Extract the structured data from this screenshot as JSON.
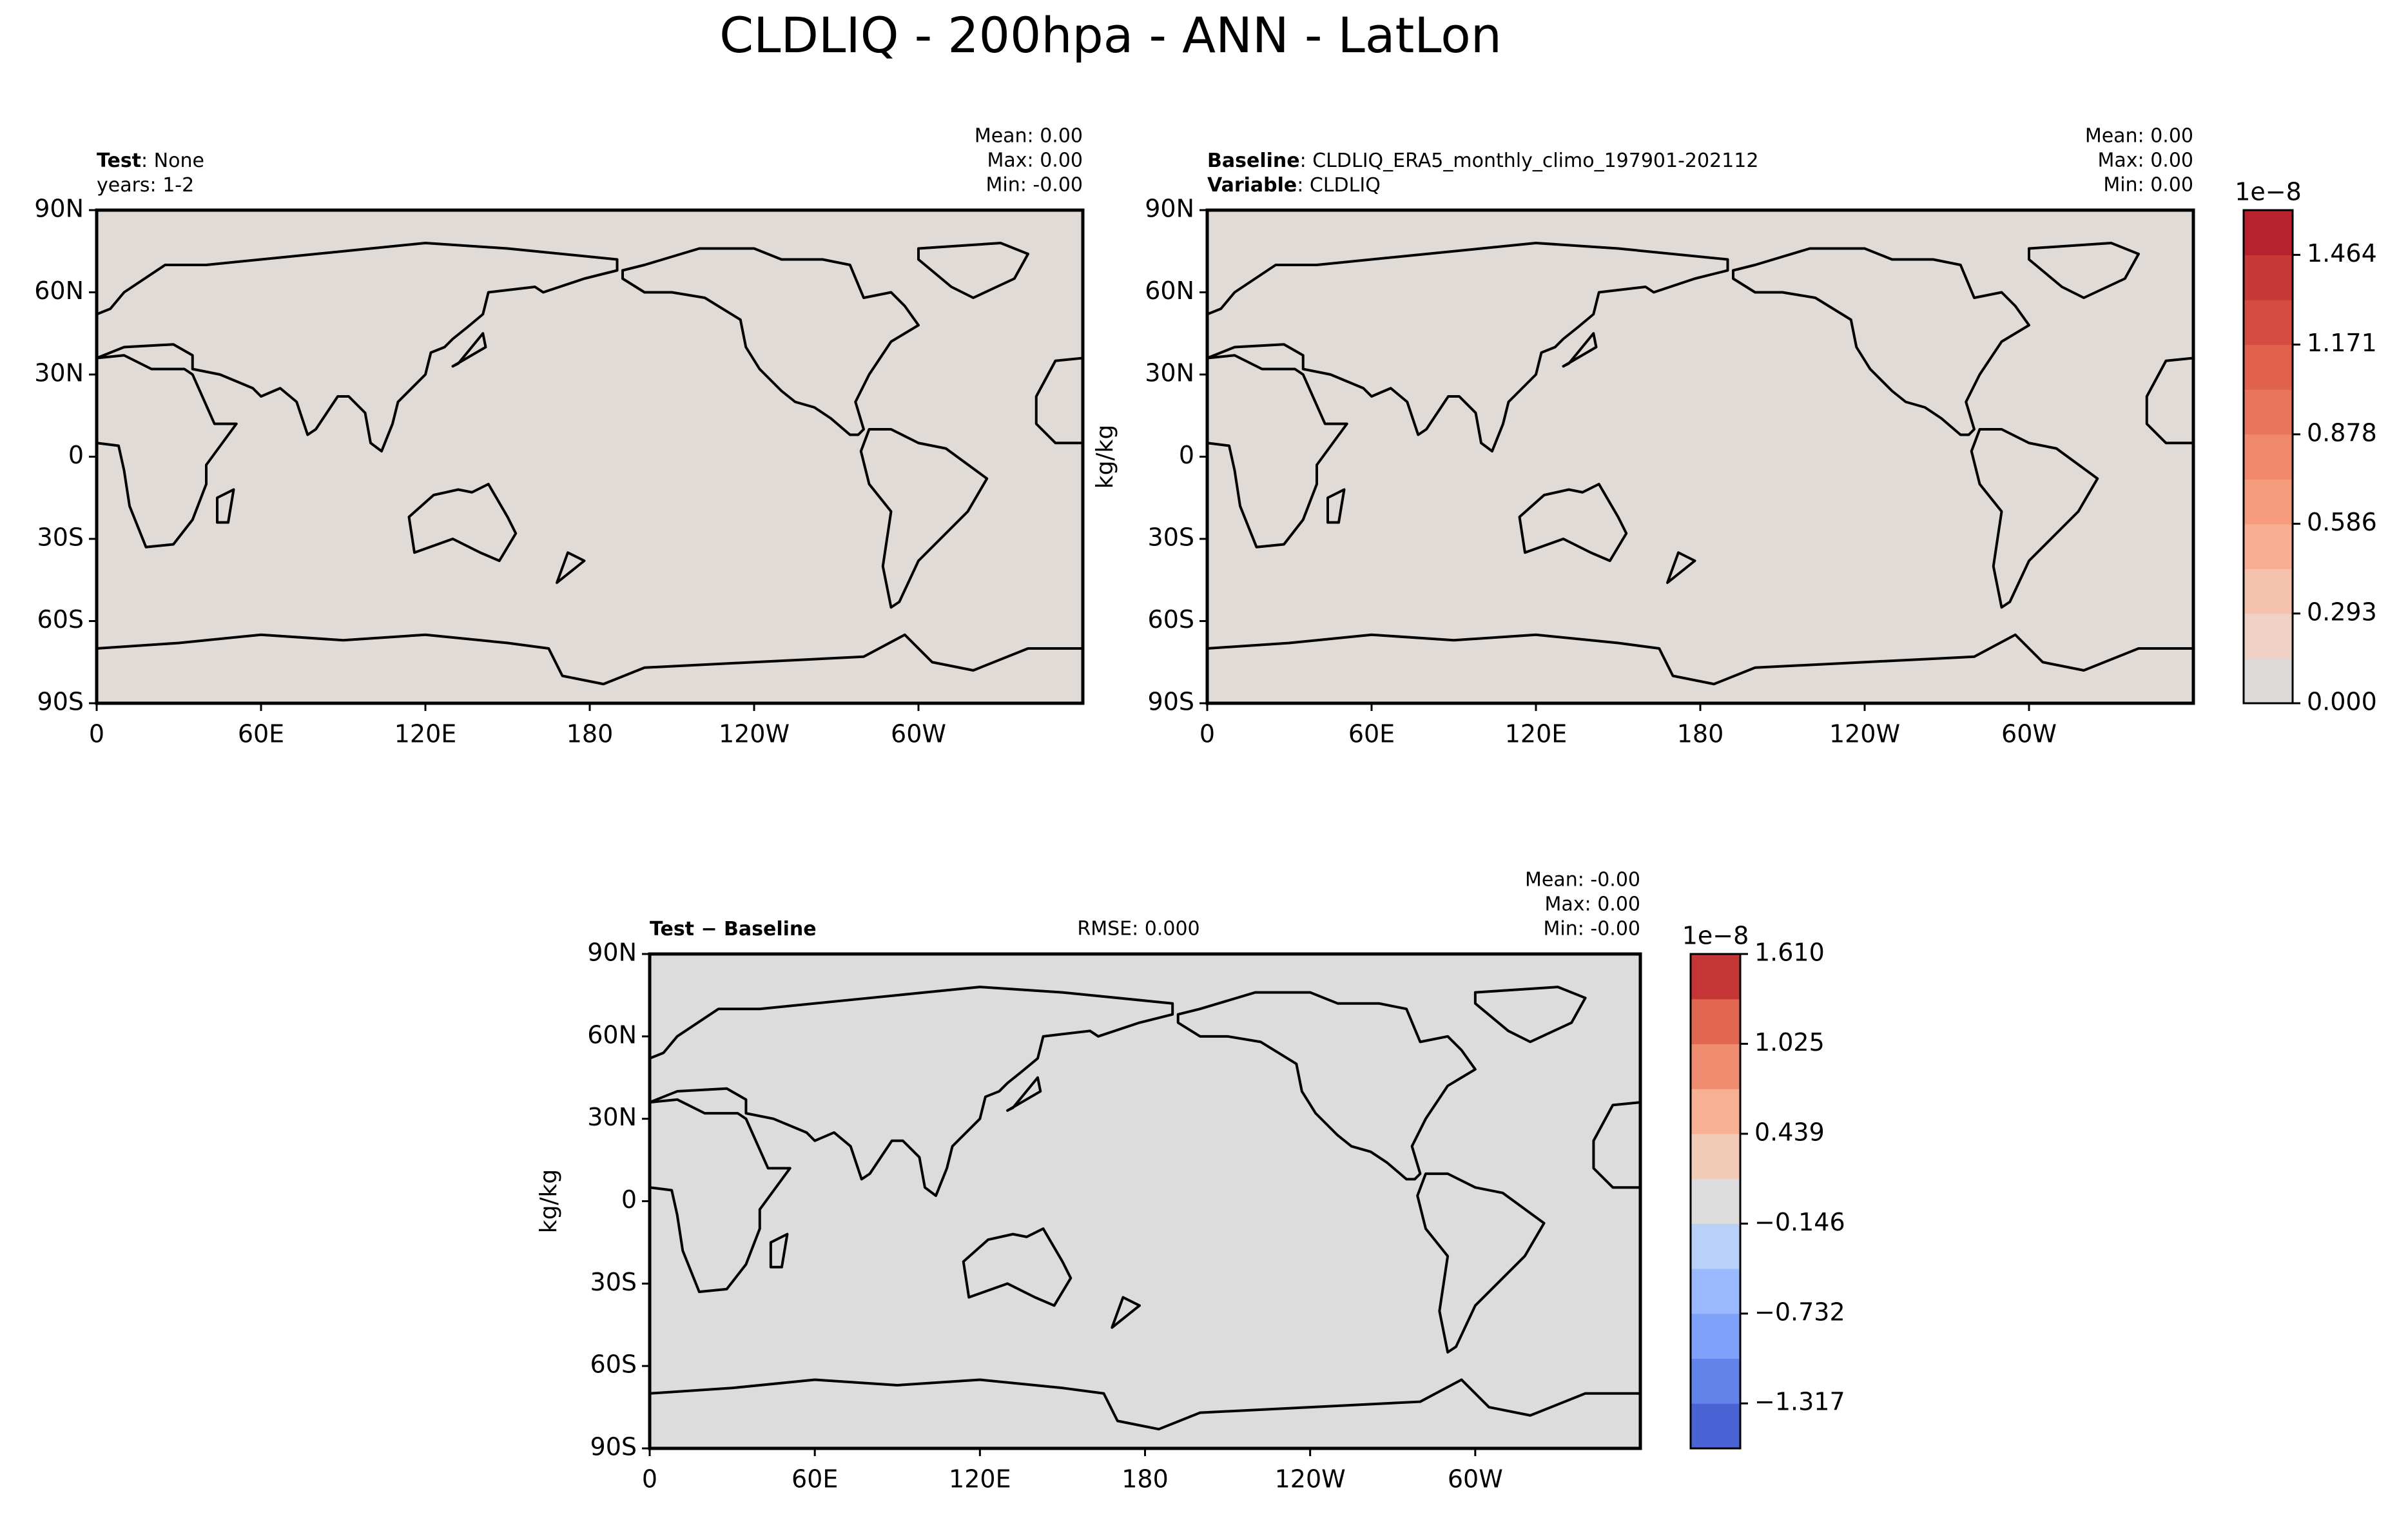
{
  "title": "CLDLIQ - 200hpa - ANN - LatLon",
  "chart_data": [
    {
      "type": "map",
      "fill_color": "#e0dbd7",
      "rows": [
        {
          "bold": "Test",
          "text": ": None"
        },
        {
          "text": "years: 1-2"
        }
      ],
      "stats": [
        "Mean:  0.00",
        "Max:  0.00",
        "Min: -0.00"
      ],
      "xlim": [
        0,
        360
      ],
      "ylim": [
        -90,
        90
      ],
      "xticks": [
        0,
        {
          "value": 60,
          "label": "60E"
        },
        {
          "value": 120,
          "label": "120E"
        },
        180,
        {
          "value": 240,
          "label": "120W"
        },
        {
          "value": 300,
          "label": "60W"
        }
      ],
      "yticks": [
        {
          "value": 90,
          "label": "90N"
        },
        {
          "value": 60,
          "label": "60N"
        },
        {
          "value": 30,
          "label": "30N"
        },
        0,
        {
          "value": -30,
          "label": "30S"
        },
        {
          "value": -60,
          "label": "60S"
        },
        {
          "value": -90,
          "label": "90S"
        }
      ]
    },
    {
      "type": "map",
      "fill_color": "#e0dbd7",
      "rows": [
        {
          "bold": "Baseline",
          "text": ": CLDLIQ_ERA5_monthly_climo_197901-202112"
        },
        {
          "bold": "Variable",
          "text": ": CLDLIQ"
        }
      ],
      "stats": [
        "Mean:  0.00",
        "Max:  0.00",
        "Min:  0.00"
      ],
      "ylabel": "kg/kg",
      "xlim": [
        0,
        360
      ],
      "ylim": [
        -90,
        90
      ],
      "xticks": [
        0,
        {
          "value": 60,
          "label": "60E"
        },
        {
          "value": 120,
          "label": "120E"
        },
        180,
        {
          "value": 240,
          "label": "120W"
        },
        {
          "value": 300,
          "label": "60W"
        }
      ],
      "yticks": [
        {
          "value": 90,
          "label": "90N"
        },
        {
          "value": 60,
          "label": "60N"
        },
        {
          "value": 30,
          "label": "30N"
        },
        0,
        {
          "value": -30,
          "label": "30S"
        },
        {
          "value": -60,
          "label": "60S"
        },
        {
          "value": -90,
          "label": "90S"
        }
      ],
      "colorbar": {
        "offset_label": "1e−8",
        "lim": [
          0,
          1.61
        ],
        "ticks": [
          {
            "value": 0,
            "label": "0.000"
          },
          0.293,
          0.586,
          0.878,
          1.171,
          1.464
        ],
        "colors": [
          "#dcdad9",
          "#efd2c5",
          "#f5c3ad",
          "#f7ae93",
          "#f59c7f",
          "#f0886b",
          "#e8755c",
          "#df614e",
          "#d44c42",
          "#c83836",
          "#b8222f"
        ]
      }
    },
    {
      "type": "map",
      "fill_color": "#dcdcdc",
      "rows": [
        {
          "bold": "Test − Baseline"
        }
      ],
      "rmse": "RMSE: 0.000",
      "stats": [
        "Mean: -0.00",
        "Max:  0.00",
        "Min: -0.00"
      ],
      "ylabel": "kg/kg",
      "xlim": [
        0,
        360
      ],
      "ylim": [
        -90,
        90
      ],
      "xticks": [
        0,
        {
          "value": 60,
          "label": "60E"
        },
        {
          "value": 120,
          "label": "120E"
        },
        180,
        {
          "value": 240,
          "label": "120W"
        },
        {
          "value": 300,
          "label": "60W"
        }
      ],
      "yticks": [
        {
          "value": 90,
          "label": "90N"
        },
        {
          "value": 60,
          "label": "60N"
        },
        {
          "value": 30,
          "label": "30N"
        },
        0,
        {
          "value": -30,
          "label": "30S"
        },
        {
          "value": -60,
          "label": "60S"
        },
        {
          "value": -90,
          "label": "90S"
        }
      ],
      "colorbar": {
        "offset_label": "1e−8",
        "lim": [
          -1.61,
          1.61
        ],
        "ticks": [
          {
            "value": 1.61,
            "label": "1.610"
          },
          1.025,
          0.439,
          {
            "value": -0.146,
            "label": "−0.146"
          },
          {
            "value": -0.732,
            "label": "−0.732"
          },
          {
            "value": -1.317,
            "label": "−1.317"
          }
        ],
        "colors": [
          "#4a63d4",
          "#6283ea",
          "#7ea1fa",
          "#9bb9fe",
          "#b9d0f9",
          "#dcdcdc",
          "#f2cbb7",
          "#f6b194",
          "#f08c6f",
          "#e06650",
          "#c63536"
        ]
      }
    }
  ]
}
